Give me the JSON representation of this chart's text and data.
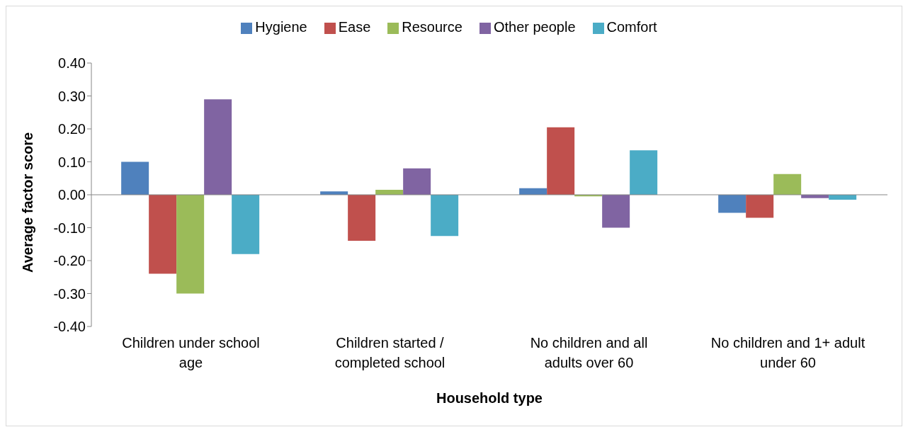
{
  "chart_data": {
    "type": "bar",
    "xlabel": "Household type",
    "ylabel": "Average factor score",
    "categories": [
      "Children under school age",
      "Children started / completed school",
      "No children and all adults over 60",
      "No children and 1+ adult under 60"
    ],
    "series": [
      {
        "name": "Hygiene",
        "color": "#4f81bd",
        "values": [
          0.1,
          0.01,
          0.02,
          -0.055
        ]
      },
      {
        "name": "Ease",
        "color": "#c0504d",
        "values": [
          -0.24,
          -0.14,
          0.205,
          -0.07
        ]
      },
      {
        "name": "Resource",
        "color": "#9bbb59",
        "values": [
          -0.3,
          0.015,
          -0.005,
          0.063
        ]
      },
      {
        "name": "Other people",
        "color": "#8064a2",
        "values": [
          0.29,
          0.08,
          -0.1,
          -0.01
        ]
      },
      {
        "name": "Comfort",
        "color": "#4bacc6",
        "values": [
          -0.18,
          -0.125,
          0.135,
          -0.015
        ]
      }
    ],
    "ylim": [
      -0.4,
      0.4
    ],
    "yticks": [
      {
        "value": -0.4,
        "label": "-0.40"
      },
      {
        "value": -0.3,
        "label": "-0.30"
      },
      {
        "value": -0.2,
        "label": "-0.20"
      },
      {
        "value": -0.1,
        "label": "-0.10"
      },
      {
        "value": 0,
        "label": "0.00"
      },
      {
        "value": 0.1,
        "label": "0.10"
      },
      {
        "value": 0.2,
        "label": "0.20"
      },
      {
        "value": 0.3,
        "label": "0.30"
      },
      {
        "value": 0.4,
        "label": "0.40"
      }
    ],
    "ref_lines": [
      {
        "axis": "y",
        "value": 0,
        "color": "#868686"
      }
    ],
    "grid": false,
    "legend": "top"
  }
}
